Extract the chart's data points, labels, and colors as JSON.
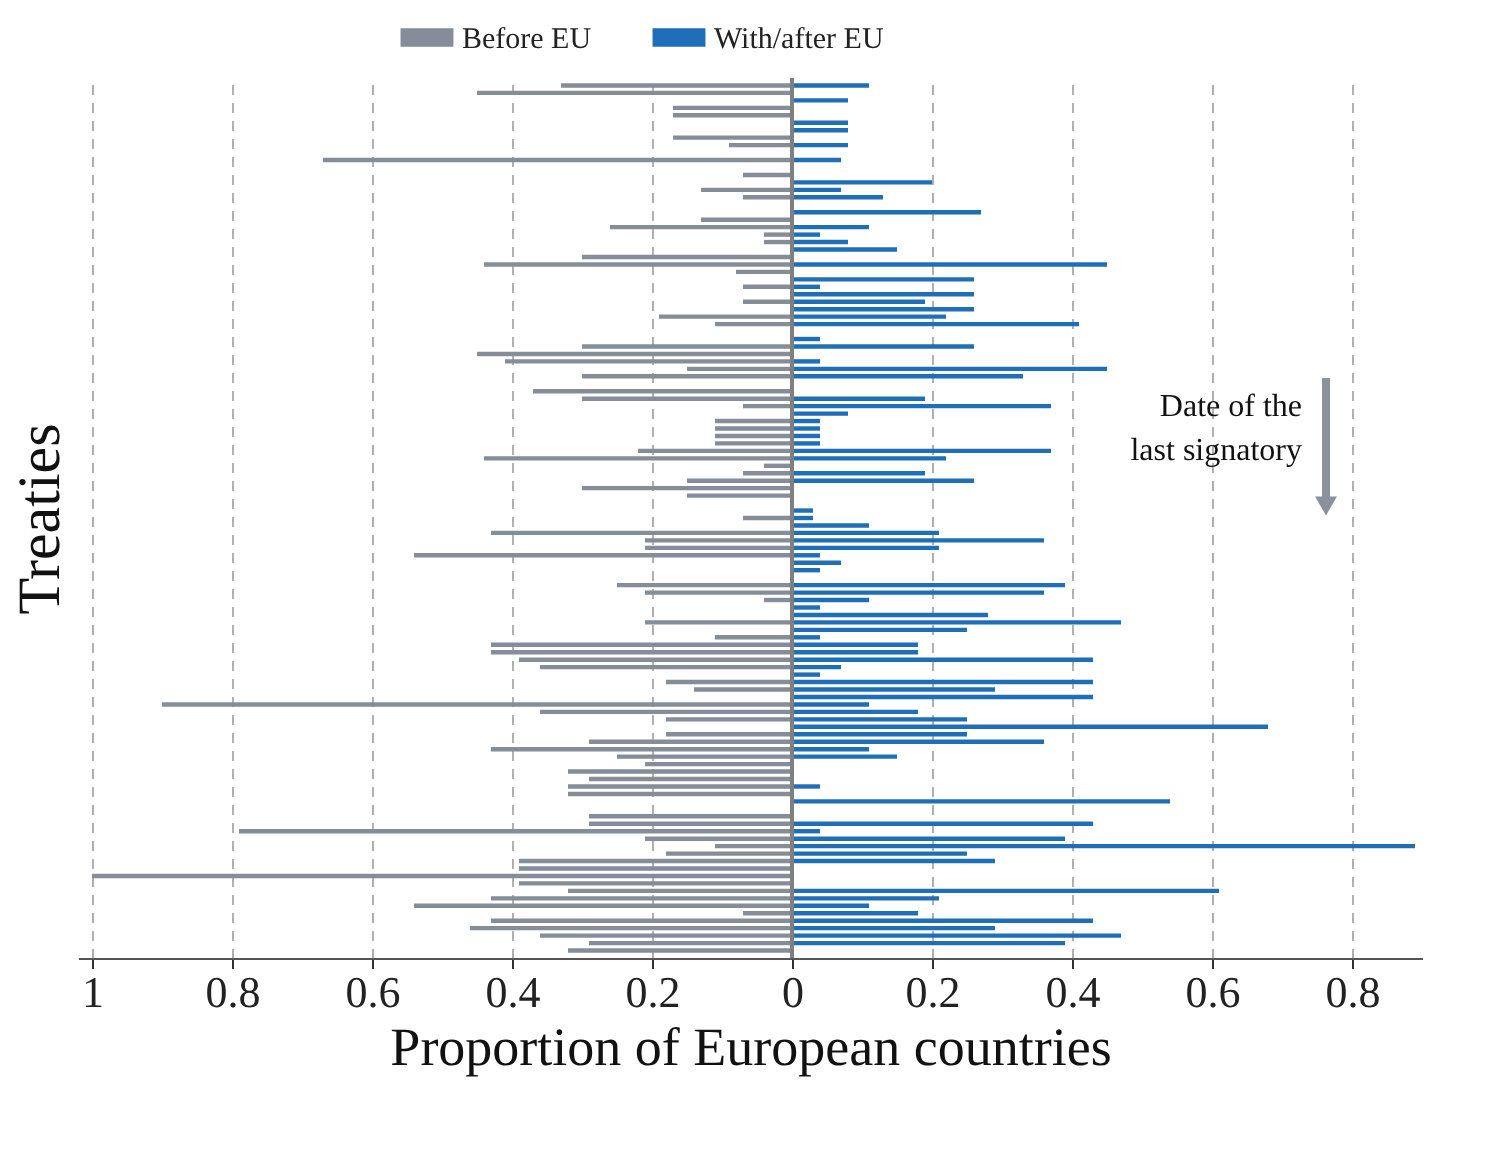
{
  "chart_data": {
    "type": "bar",
    "orientation": "horizontal",
    "stacked": true,
    "xlabel": "Proportion of European countries",
    "ylabel": "Treaties",
    "categories": [
      null,
      null,
      null,
      null,
      null,
      null,
      null,
      null,
      null,
      null,
      null,
      null,
      null,
      null,
      null,
      null,
      null,
      null,
      null,
      null,
      null,
      null,
      null,
      null,
      null,
      null,
      null,
      null,
      null,
      null,
      null,
      null,
      null,
      null,
      null,
      null,
      null,
      null,
      null,
      null,
      null,
      null,
      null,
      null,
      null,
      null,
      null,
      null,
      null,
      null,
      null,
      null,
      null,
      null,
      null,
      null,
      null,
      null,
      null,
      null,
      null,
      null,
      null,
      null,
      null,
      null,
      null,
      null,
      null,
      null,
      null,
      null,
      null,
      null,
      null,
      null,
      null,
      null,
      null,
      null,
      null,
      null,
      null,
      null,
      null,
      null,
      null,
      null,
      null,
      null,
      null,
      null,
      null,
      null,
      null,
      null,
      null,
      null,
      null,
      null,
      null,
      null,
      null,
      null,
      null,
      null,
      null,
      null,
      null,
      null,
      null,
      null,
      null,
      null,
      null,
      null,
      null
    ],
    "series": [
      {
        "name": "Before EU",
        "color": "#858d99",
        "values": [
          -0.33,
          -0.45,
          null,
          -0.17,
          -0.17,
          null,
          null,
          -0.17,
          -0.09,
          null,
          -0.67,
          null,
          -0.07,
          null,
          -0.13,
          -0.07,
          null,
          null,
          -0.13,
          -0.26,
          -0.04,
          -0.04,
          null,
          -0.3,
          -0.44,
          -0.08,
          null,
          -0.07,
          null,
          -0.07,
          null,
          -0.19,
          -0.11,
          null,
          null,
          -0.3,
          -0.45,
          -0.41,
          -0.15,
          -0.3,
          null,
          -0.37,
          -0.3,
          -0.07,
          null,
          -0.11,
          -0.11,
          -0.11,
          -0.11,
          -0.22,
          -0.44,
          -0.04,
          -0.07,
          -0.15,
          -0.3,
          -0.15,
          null,
          null,
          -0.07,
          null,
          -0.43,
          -0.21,
          -0.21,
          -0.54,
          null,
          null,
          null,
          -0.25,
          -0.21,
          -0.04,
          null,
          null,
          -0.21,
          null,
          -0.11,
          -0.43,
          -0.43,
          -0.39,
          -0.36,
          null,
          -0.18,
          -0.14,
          null,
          -0.9,
          -0.36,
          -0.18,
          null,
          -0.18,
          -0.29,
          -0.43,
          -0.25,
          -0.21,
          -0.32,
          -0.29,
          -0.32,
          -0.32,
          null,
          null,
          -0.29,
          -0.29,
          -0.79,
          -0.21,
          -0.11,
          -0.18,
          -0.39,
          -0.39,
          -1.0,
          -0.39,
          -0.32,
          -0.43,
          -0.54,
          -0.07,
          -0.43,
          -0.46,
          -0.36,
          -0.29,
          -0.32
        ]
      },
      {
        "name": "With/after EU",
        "color": "#1f6fb8",
        "values": [
          0.11,
          null,
          0.08,
          null,
          null,
          0.08,
          0.08,
          null,
          0.08,
          null,
          0.07,
          null,
          null,
          0.2,
          0.07,
          0.13,
          null,
          0.27,
          null,
          0.11,
          0.04,
          0.08,
          0.15,
          null,
          0.45,
          null,
          0.26,
          0.04,
          0.26,
          0.19,
          0.26,
          0.22,
          0.41,
          null,
          0.04,
          0.26,
          null,
          0.04,
          0.45,
          0.33,
          null,
          null,
          0.19,
          0.37,
          0.08,
          0.04,
          0.04,
          0.04,
          0.04,
          0.37,
          0.22,
          null,
          0.19,
          0.26,
          null,
          null,
          null,
          0.03,
          0.03,
          0.11,
          0.21,
          0.36,
          0.21,
          0.04,
          0.07,
          0.04,
          null,
          0.39,
          0.36,
          0.11,
          0.04,
          0.28,
          0.47,
          0.25,
          0.04,
          0.18,
          0.18,
          0.43,
          0.07,
          0.04,
          0.43,
          0.29,
          0.43,
          0.11,
          0.18,
          0.25,
          0.68,
          0.25,
          0.36,
          0.11,
          0.15,
          null,
          null,
          null,
          0.04,
          null,
          0.54,
          null,
          null,
          0.43,
          0.04,
          0.39,
          0.89,
          0.25,
          0.29,
          null,
          null,
          null,
          0.61,
          0.21,
          0.11,
          0.18,
          0.43,
          0.29,
          0.47,
          0.39,
          null
        ]
      }
    ],
    "xlim": [
      -1.02,
      0.9
    ],
    "xticks": [
      {
        "value": -1,
        "label": "1"
      },
      {
        "value": -0.8,
        "label": "0.8"
      },
      {
        "value": -0.6,
        "label": "0.6"
      },
      {
        "value": -0.4,
        "label": "0.4"
      },
      {
        "value": -0.2,
        "label": "0.2"
      },
      0,
      0.2,
      0.4,
      0.6,
      0.8
    ],
    "grid": "x",
    "legend": "top",
    "tick_labels": "x",
    "ref_lines": [
      {
        "axis": "x",
        "value": 0,
        "color": "#7f7f7f"
      }
    ],
    "annotations": [
      "Date of the\nlast signatory"
    ]
  }
}
